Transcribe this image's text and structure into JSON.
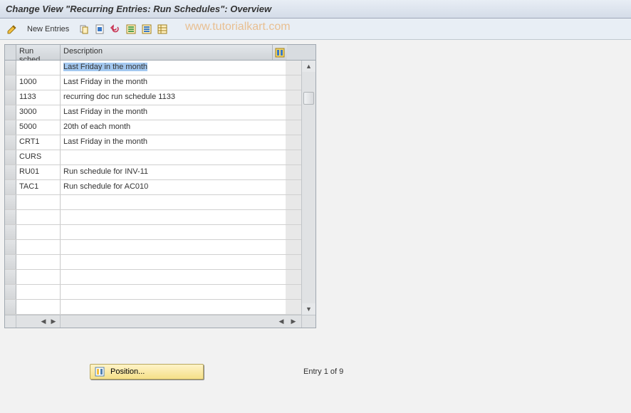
{
  "title": "Change View \"Recurring Entries: Run Schedules\": Overview",
  "watermark": "www.tutorialkart.com",
  "toolbar": {
    "new_entries_label": "New Entries"
  },
  "table": {
    "columns": {
      "col1": "Run sched.",
      "col2": "Description"
    },
    "rows": [
      {
        "sched": "",
        "desc": "Last Friday in the month",
        "selected": true
      },
      {
        "sched": "1000",
        "desc": "Last Friday in the month"
      },
      {
        "sched": "1133",
        "desc": "recurring doc run schedule 1133"
      },
      {
        "sched": "3000",
        "desc": "Last Friday in the month"
      },
      {
        "sched": "5000",
        "desc": "20th of each month"
      },
      {
        "sched": "CRT1",
        "desc": "Last Friday in the month"
      },
      {
        "sched": "CURS",
        "desc": ""
      },
      {
        "sched": "RU01",
        "desc": "Run schedule for INV-11"
      },
      {
        "sched": "TAC1",
        "desc": "Run schedule for AC010"
      }
    ],
    "empty_rows": 8
  },
  "footer": {
    "position_label": "Position...",
    "entry_text": "Entry 1 of 9"
  },
  "colors": {
    "titlebar_grad_top": "#e8eef5",
    "titlebar_grad_bot": "#d4dce8",
    "toolbar_bg": "#e8eef5",
    "content_bg": "#f2f2f2",
    "sel_highlight": "#a3c8f0",
    "position_btn_top": "#fff4c8",
    "position_btn_bot": "#f5e088"
  }
}
